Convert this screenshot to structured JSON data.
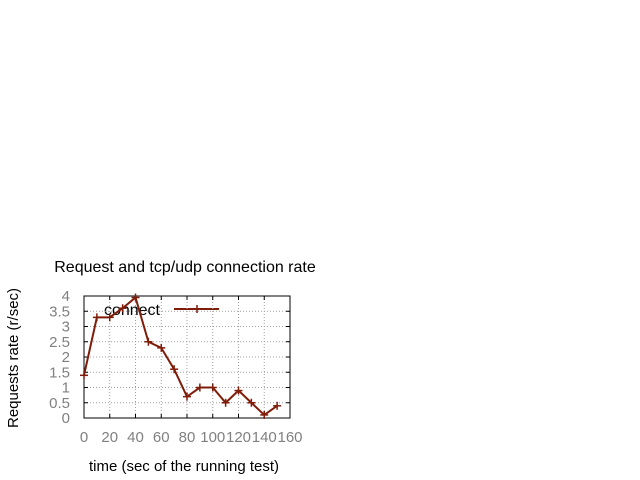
{
  "chart_data": {
    "type": "line",
    "title": "Request and tcp/udp connection rate",
    "xlabel": "time (sec of the running test)",
    "ylabel": "Requests rate (r/sec)",
    "xlim": [
      0,
      160
    ],
    "ylim": [
      0,
      4
    ],
    "xticks": [
      0,
      20,
      40,
      60,
      80,
      100,
      120,
      140,
      160
    ],
    "yticks": [
      0,
      0.5,
      1,
      1.5,
      2,
      2.5,
      3,
      3.5,
      4
    ],
    "grid": true,
    "legend_position": "top-left",
    "series": [
      {
        "name": "connect",
        "color": "#7f1d0a",
        "marker": "plus",
        "x": [
          0,
          10,
          20,
          30,
          40,
          50,
          60,
          70,
          80,
          90,
          100,
          110,
          120,
          130,
          140,
          150
        ],
        "y": [
          1.4,
          3.3,
          3.3,
          3.6,
          3.95,
          2.5,
          2.3,
          1.6,
          0.7,
          1.0,
          1.0,
          0.5,
          0.9,
          0.5,
          0.1,
          0.4
        ]
      }
    ]
  }
}
